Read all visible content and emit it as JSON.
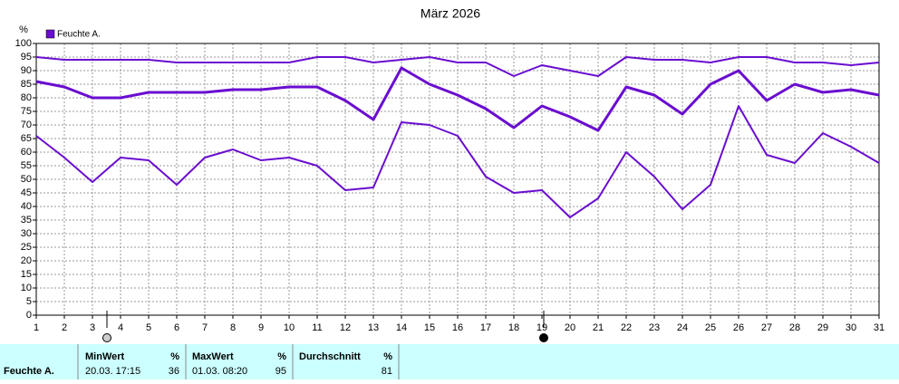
{
  "chart_data": {
    "type": "line",
    "title": "März 2026",
    "y_unit": "%",
    "x": [
      1,
      2,
      3,
      4,
      5,
      6,
      7,
      8,
      9,
      10,
      11,
      12,
      13,
      14,
      15,
      16,
      17,
      18,
      19,
      20,
      21,
      22,
      23,
      24,
      25,
      26,
      27,
      28,
      29,
      30,
      31
    ],
    "xlim": [
      1,
      31
    ],
    "xticks": [
      1,
      2,
      3,
      4,
      5,
      6,
      7,
      8,
      9,
      10,
      11,
      12,
      13,
      14,
      15,
      16,
      17,
      18,
      19,
      20,
      21,
      22,
      23,
      24,
      25,
      26,
      27,
      28,
      29,
      30,
      31
    ],
    "ylim": [
      0,
      100
    ],
    "yticks": [
      0,
      5,
      10,
      15,
      20,
      25,
      30,
      35,
      40,
      45,
      50,
      55,
      60,
      65,
      70,
      75,
      80,
      85,
      90,
      95,
      100
    ],
    "grid": true,
    "legend": "top-left",
    "series": [
      {
        "color": "#6a0dd0",
        "values": [
          95,
          94,
          94,
          94,
          94,
          93,
          93,
          93,
          93,
          93,
          95,
          95,
          93,
          94,
          95,
          93,
          93,
          88,
          92,
          90,
          88,
          95,
          94,
          94,
          93,
          95,
          95,
          93,
          93,
          92,
          93
        ]
      },
      {
        "name": "Feuchte A.",
        "color": "#6a0dd0",
        "values": [
          86,
          84,
          80,
          80,
          82,
          82,
          82,
          83,
          83,
          84,
          84,
          79,
          72,
          91,
          85,
          81,
          76,
          69,
          77,
          73,
          68,
          84,
          81,
          74,
          85,
          90,
          79,
          85,
          82,
          83,
          81
        ]
      },
      {
        "color": "#6a0dd0",
        "values": [
          66,
          58,
          49,
          58,
          57,
          48,
          58,
          61,
          57,
          58,
          55,
          46,
          47,
          71,
          70,
          66,
          51,
          45,
          46,
          36,
          43,
          60,
          51,
          39,
          48,
          77,
          59,
          56,
          67,
          62,
          56
        ]
      }
    ]
  },
  "stats": {
    "row_label": "Feuchte A.",
    "min": {
      "header": "MinWert",
      "unit": "%",
      "time": "20.03.  17:15",
      "value": 36
    },
    "max": {
      "header": "MaxWert",
      "unit": "%",
      "time": "01.03.  08:20",
      "value": 95
    },
    "avg": {
      "header": "Durchschnitt",
      "unit": "%",
      "value": 81
    }
  }
}
